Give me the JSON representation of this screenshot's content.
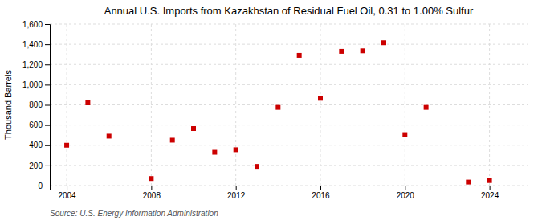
{
  "chart_data": {
    "type": "scatter",
    "title": "Annual U.S. Imports from Kazakhstan of Residual Fuel Oil, 0.31 to 1.00% Sulfur",
    "ylabel": "Thousand Barrels",
    "source": "Source: U.S. Energy Information Administration",
    "x": [
      2004,
      2005,
      2006,
      2008,
      2009,
      2010,
      2011,
      2012,
      2013,
      2014,
      2015,
      2016,
      2017,
      2018,
      2019,
      2020,
      2021,
      2023,
      2024
    ],
    "values": [
      400,
      820,
      490,
      70,
      450,
      565,
      330,
      355,
      190,
      775,
      1290,
      865,
      1330,
      1335,
      1415,
      505,
      775,
      35,
      50
    ],
    "color": "#cc0000",
    "marker": "square",
    "xlim": [
      2003.2,
      2025.8
    ],
    "ylim": [
      0,
      1600
    ],
    "xticks": [
      2004,
      2008,
      2012,
      2016,
      2020,
      2024
    ],
    "yticks": [
      0,
      200,
      400,
      600,
      800,
      {
        "value": 1000,
        "label": "1,000"
      },
      {
        "value": 1200,
        "label": "1,200"
      },
      {
        "value": 1400,
        "label": "1,400"
      },
      {
        "value": 1600,
        "label": "1,600"
      }
    ],
    "grid": true
  }
}
